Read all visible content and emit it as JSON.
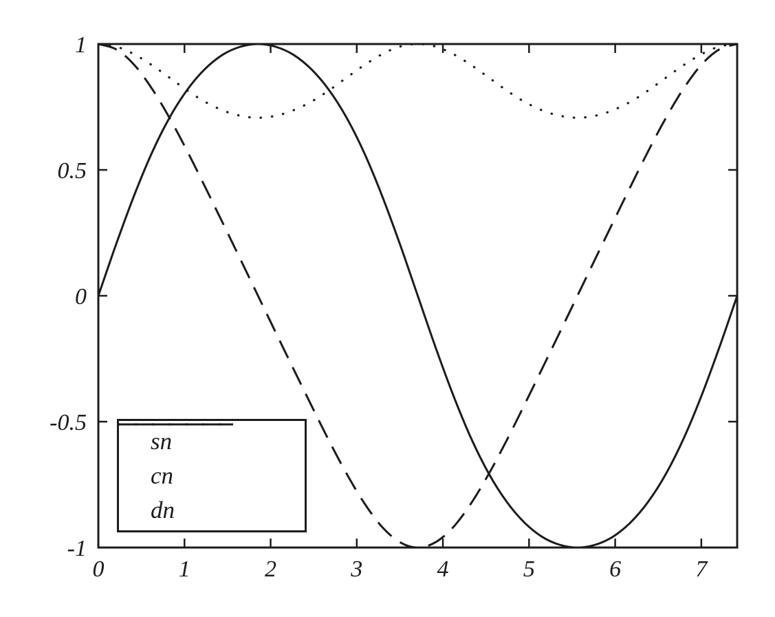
{
  "figure": {
    "background": "#ffffff",
    "line_color": "#1c1c1c",
    "text_color": "#1c1c1c"
  },
  "chart_data": {
    "type": "line",
    "title": "",
    "xlabel": "",
    "ylabel": "",
    "grid": false,
    "legend_position": "lower-left",
    "xlim": [
      0,
      7.4163
    ],
    "ylim": [
      -1,
      1
    ],
    "xticks": {
      "values": [
        0,
        1,
        2,
        3,
        4,
        5,
        6,
        7
      ],
      "labels": [
        "0",
        "1",
        "2",
        "3",
        "4",
        "5",
        "6",
        "7"
      ]
    },
    "yticks": {
      "values": [
        1,
        0.5,
        0,
        -0.5,
        -1
      ],
      "labels": [
        "1",
        "0.5",
        "0",
        "-0.5",
        "-1"
      ]
    },
    "x": [
      0,
      0.206,
      0.412,
      0.618,
      0.824,
      1.03,
      1.236,
      1.442,
      1.648,
      1.854,
      2.06,
      2.266,
      2.472,
      2.678,
      2.884,
      3.09,
      3.296,
      3.502,
      3.708,
      3.914,
      4.12,
      4.326,
      4.532,
      4.738,
      4.944,
      5.15,
      5.356,
      5.562,
      5.768,
      5.974,
      6.18,
      6.386,
      6.592,
      6.798,
      7.004,
      7.21,
      7.416
    ],
    "series": [
      {
        "name": "sn",
        "line_style": "solid",
        "color": "#1c1c1c",
        "values": [
          0,
          0.204,
          0.395,
          0.565,
          0.706,
          0.817,
          0.9,
          0.957,
          0.989,
          1.0,
          0.989,
          0.957,
          0.9,
          0.817,
          0.706,
          0.565,
          0.395,
          0.204,
          0,
          -0.204,
          -0.395,
          -0.565,
          -0.706,
          -0.817,
          -0.9,
          -0.957,
          -0.989,
          -1.0,
          -0.989,
          -0.957,
          -0.9,
          -0.817,
          -0.706,
          -0.565,
          -0.395,
          -0.204,
          0
        ]
      },
      {
        "name": "cn",
        "line_style": "dashed",
        "color": "#1c1c1c",
        "values": [
          1.0,
          0.979,
          0.919,
          0.825,
          0.708,
          0.576,
          0.435,
          0.291,
          0.146,
          0,
          -0.146,
          -0.291,
          -0.435,
          -0.576,
          -0.708,
          -0.825,
          -0.919,
          -0.979,
          -1.0,
          -0.979,
          -0.919,
          -0.825,
          -0.708,
          -0.576,
          -0.435,
          -0.291,
          -0.146,
          0,
          0.146,
          0.291,
          0.435,
          0.576,
          0.708,
          0.825,
          0.919,
          0.979,
          1.0
        ]
      },
      {
        "name": "dn",
        "line_style": "dotted",
        "color": "#1c1c1c",
        "values": [
          1.0,
          0.99,
          0.96,
          0.917,
          0.867,
          0.816,
          0.771,
          0.737,
          0.715,
          0.707,
          0.715,
          0.737,
          0.771,
          0.816,
          0.867,
          0.917,
          0.96,
          0.99,
          1.0,
          0.99,
          0.96,
          0.917,
          0.867,
          0.816,
          0.771,
          0.737,
          0.715,
          0.707,
          0.715,
          0.737,
          0.771,
          0.816,
          0.867,
          0.917,
          0.96,
          0.99,
          1.0
        ]
      }
    ]
  }
}
